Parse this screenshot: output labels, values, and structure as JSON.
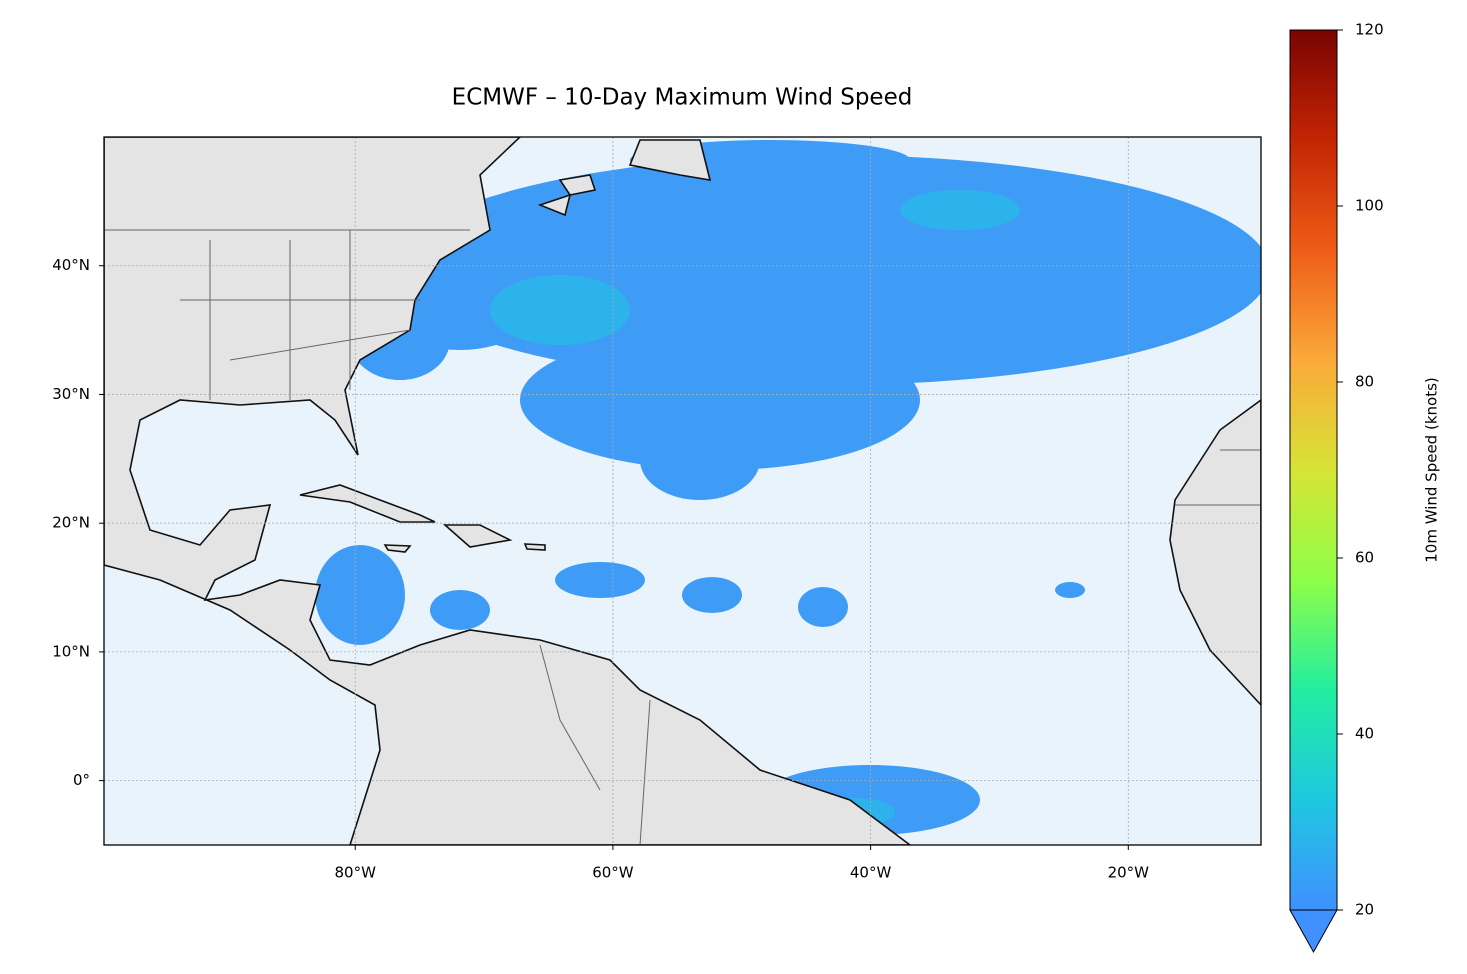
{
  "chart_data": {
    "type": "map",
    "title": "ECMWF – 10-Day Maximum Wind Speed",
    "xlim": [
      -99.5,
      -9.7
    ],
    "ylim": [
      -5,
      50
    ],
    "xticks": [
      {
        "value": -80,
        "label": "80°W"
      },
      {
        "value": -60,
        "label": "60°W"
      },
      {
        "value": -40,
        "label": "40°W"
      },
      {
        "value": -20,
        "label": "20°W"
      }
    ],
    "yticks": [
      {
        "value": 0,
        "label": "0°"
      },
      {
        "value": 10,
        "label": "10°N"
      },
      {
        "value": 20,
        "label": "20°N"
      },
      {
        "value": 30,
        "label": "30°N"
      },
      {
        "value": 40,
        "label": "40°N"
      }
    ],
    "grid": true,
    "colorbar": {
      "label": "10m Wind Speed (knots)",
      "clim": [
        20,
        120
      ],
      "ticks": [
        20,
        40,
        60,
        80,
        100,
        120
      ],
      "colormap": [
        "#4090ff",
        "#1ec8e0",
        "#22eea0",
        "#8efe48",
        "#d7e435",
        "#fba93a",
        "#ee5d17",
        "#c42503",
        "#7a0403"
      ]
    }
  }
}
